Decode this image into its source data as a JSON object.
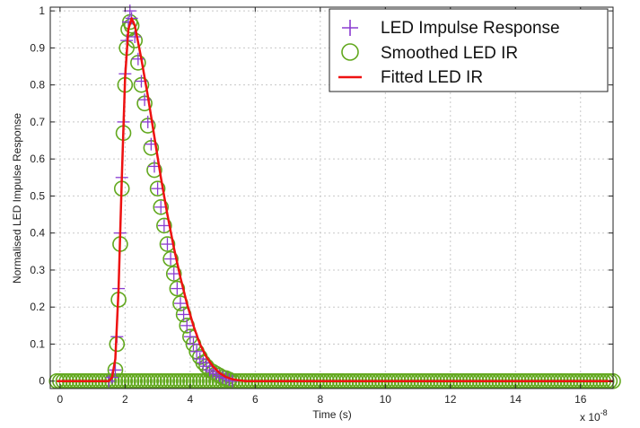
{
  "chart_data": {
    "type": "scatter",
    "title": "",
    "xlabel": "Time (s)",
    "ylabel": "Normalised LED Impulse Response",
    "x_multiplier_label": "x 10",
    "x_multiplier_exponent": "-8",
    "xlim": [
      -0.3,
      17
    ],
    "ylim": [
      -0.02,
      1.01
    ],
    "xticks": [
      "0",
      "2",
      "4",
      "6",
      "8",
      "10",
      "12",
      "14",
      "16"
    ],
    "yticks": [
      "0",
      "0.1",
      "0.2",
      "0.3",
      "0.4",
      "0.5",
      "0.6",
      "0.7",
      "0.8",
      "0.9",
      "1"
    ],
    "grid": true,
    "legend_position": "top-right",
    "colors": {
      "led_ir": "#8a3bd0",
      "smoothed": "#62a81e",
      "fitted": "#ee1111"
    },
    "series": [
      {
        "name": "LED Impulse Response",
        "marker": "plus",
        "x": [
          1.5,
          1.6,
          1.7,
          1.75,
          1.8,
          1.85,
          1.9,
          1.95,
          2.0,
          2.05,
          2.1,
          2.15,
          2.2,
          2.3,
          2.4,
          2.5,
          2.6,
          2.7,
          2.8,
          2.9,
          3.0,
          3.1,
          3.2,
          3.3,
          3.4,
          3.5,
          3.6,
          3.7,
          3.8,
          3.9,
          4.0,
          4.1,
          4.2,
          4.3,
          4.4,
          4.5,
          4.6,
          4.7,
          4.8,
          4.9,
          5.0,
          5.1,
          5.2,
          5.3
        ],
        "y": [
          0.0,
          0.01,
          0.03,
          0.12,
          0.25,
          0.4,
          0.55,
          0.7,
          0.83,
          0.92,
          0.97,
          1.0,
          0.98,
          0.93,
          0.87,
          0.81,
          0.76,
          0.7,
          0.64,
          0.58,
          0.52,
          0.47,
          0.42,
          0.37,
          0.33,
          0.29,
          0.25,
          0.21,
          0.18,
          0.15,
          0.12,
          0.1,
          0.08,
          0.06,
          0.05,
          0.04,
          0.03,
          0.025,
          0.02,
          0.015,
          0.01,
          0.008,
          0.004,
          0.0
        ]
      },
      {
        "name": "Smoothed LED IR",
        "marker": "circle",
        "x": [
          1.7,
          1.75,
          1.8,
          1.85,
          1.9,
          1.95,
          2.0,
          2.05,
          2.1,
          2.15,
          2.2,
          2.3,
          2.4,
          2.5,
          2.6,
          2.7,
          2.8,
          2.9,
          3.0,
          3.1,
          3.2,
          3.3,
          3.4,
          3.5,
          3.6,
          3.7,
          3.8,
          3.9,
          4.0,
          4.1,
          4.2,
          4.3,
          4.4,
          4.5,
          4.6,
          4.7,
          4.8,
          4.9,
          5.0,
          5.1,
          5.2,
          5.3
        ],
        "y": [
          0.03,
          0.1,
          0.22,
          0.37,
          0.52,
          0.67,
          0.8,
          0.9,
          0.95,
          0.97,
          0.96,
          0.92,
          0.86,
          0.8,
          0.75,
          0.69,
          0.63,
          0.57,
          0.52,
          0.47,
          0.42,
          0.37,
          0.33,
          0.29,
          0.25,
          0.21,
          0.18,
          0.15,
          0.12,
          0.1,
          0.08,
          0.065,
          0.05,
          0.04,
          0.03,
          0.025,
          0.02,
          0.015,
          0.01,
          0.008,
          0.004,
          0.0
        ]
      },
      {
        "name": "Fitted LED IR",
        "marker": "line",
        "x": [
          -0.1,
          1.5,
          1.6,
          1.7,
          1.8,
          1.9,
          2.0,
          2.1,
          2.2,
          2.3,
          2.5,
          2.7,
          2.9,
          3.1,
          3.3,
          3.5,
          3.7,
          3.9,
          4.1,
          4.3,
          4.5,
          4.7,
          4.9,
          5.1,
          5.3,
          5.5,
          5.7,
          17.0
        ],
        "y": [
          0.0,
          0.0,
          0.01,
          0.06,
          0.25,
          0.55,
          0.82,
          0.95,
          0.98,
          0.96,
          0.87,
          0.77,
          0.66,
          0.55,
          0.45,
          0.36,
          0.28,
          0.21,
          0.15,
          0.1,
          0.065,
          0.04,
          0.022,
          0.011,
          0.005,
          0.002,
          0.0,
          0.0
        ]
      }
    ],
    "flat_tail": {
      "x_start": -0.1,
      "x_end": 17.0,
      "x_step": 0.1,
      "y": 0.0
    }
  }
}
